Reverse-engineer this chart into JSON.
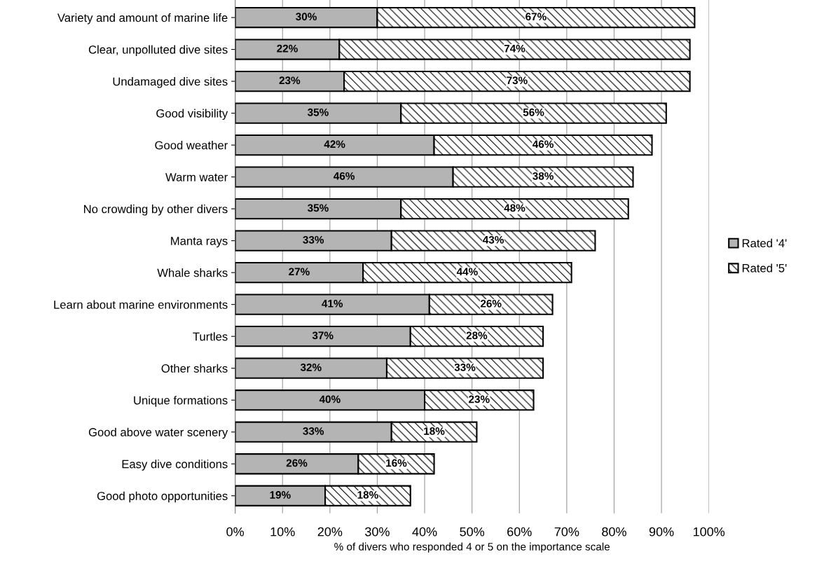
{
  "chart_data": {
    "type": "bar",
    "orientation": "horizontal",
    "stacked": true,
    "xlabel": "% of divers who responded 4 or 5 on the importance scale",
    "categories": [
      "Variety and amount of marine life",
      "Clear, unpolluted dive sites",
      "Undamaged dive sites",
      "Good visibility",
      "Good weather",
      "Warm water",
      "No crowding by other divers",
      "Manta rays",
      "Whale sharks",
      "Learn about marine environments",
      "Turtles",
      "Other sharks",
      "Unique formations",
      "Good above water scenery",
      "Easy dive conditions",
      "Good photo opportunities"
    ],
    "series": [
      {
        "name": "Rated '4'",
        "color": "#b4b4b4",
        "values": [
          30,
          22,
          23,
          35,
          42,
          46,
          35,
          33,
          27,
          41,
          37,
          32,
          40,
          33,
          26,
          19
        ],
        "value_labels": [
          "30%",
          "22%",
          "23%",
          "35%",
          "42%",
          "46%",
          "35%",
          "33%",
          "27%",
          "41%",
          "37%",
          "32%",
          "40%",
          "33%",
          "26%",
          "19%"
        ]
      },
      {
        "name": "Rated '5'",
        "color": "#000000",
        "values": [
          67,
          74,
          73,
          56,
          46,
          38,
          48,
          43,
          44,
          26,
          28,
          33,
          23,
          18,
          16,
          18
        ],
        "value_labels": [
          "67%",
          "74%",
          "73%",
          "56%",
          "46%",
          "38%",
          "48%",
          "43%",
          "44%",
          "26%",
          "28%",
          "33%",
          "23%",
          "18%",
          "16%",
          "18%"
        ]
      }
    ],
    "xlim": [
      0,
      100
    ],
    "xticks": [
      {
        "value": 0,
        "label": "0%"
      },
      {
        "value": 10,
        "label": "10%"
      },
      {
        "value": 20,
        "label": "20%"
      },
      {
        "value": 30,
        "label": "30%"
      },
      {
        "value": 40,
        "label": "40%"
      },
      {
        "value": 50,
        "label": "50%"
      },
      {
        "value": 60,
        "label": "60%"
      },
      {
        "value": 70,
        "label": "70%"
      },
      {
        "value": 80,
        "label": "80%"
      },
      {
        "value": 90,
        "label": "90%"
      },
      {
        "value": 100,
        "label": "100%"
      }
    ],
    "grid": "x",
    "legend": "right"
  }
}
